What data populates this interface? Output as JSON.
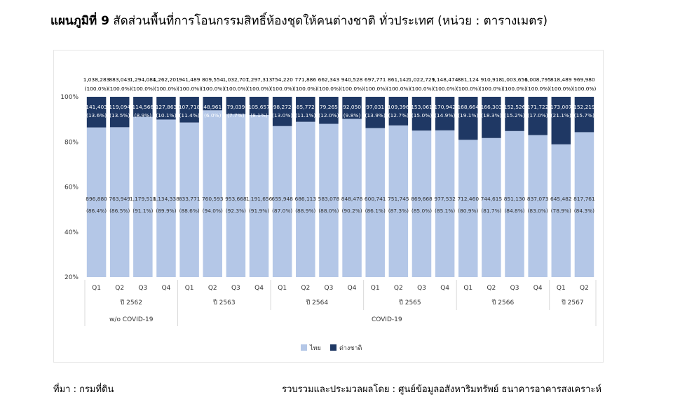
{
  "title": {
    "figure_no": "แผนภูมิที่ 9",
    "text": "สัดส่วนพื้นที่การโอนกรรมสิทธิ์ห้องชุดให้คนต่างชาติ ทั่วประเทศ (หน่วย : ตารางเมตร)"
  },
  "source": {
    "left": "ที่มา : กรมที่ดิน",
    "right": "รวบรวมและประมวลผลโดย : ศูนย์ข้อมูลอสังหาริมทรัพย์ ธนาคารอาคารสงเคราะห์"
  },
  "chart_data": {
    "type": "bar",
    "stacked": "percent",
    "categories": [
      "Q1",
      "Q2",
      "Q3",
      "Q4",
      "Q1",
      "Q2",
      "Q3",
      "Q4",
      "Q1",
      "Q2",
      "Q3",
      "Q4",
      "Q1",
      "Q2",
      "Q3",
      "Q4",
      "Q1",
      "Q2",
      "Q3",
      "Q4",
      "Q1",
      "Q2"
    ],
    "year_groups": [
      {
        "label": "ปี 2562",
        "count": 4
      },
      {
        "label": "ปี 2563",
        "count": 4
      },
      {
        "label": "ปี 2564",
        "count": 4
      },
      {
        "label": "ปี 2565",
        "count": 4
      },
      {
        "label": "ปี 2566",
        "count": 4
      },
      {
        "label": "ปี 2567",
        "count": 2
      }
    ],
    "period_groups": [
      {
        "label": "w/o COVID-19",
        "count": 4
      },
      {
        "label": "COVID-19",
        "count": 18
      }
    ],
    "totals": [
      "1,038,283",
      "883,043",
      "1,294,084",
      "1,262,201",
      "941,489",
      "809,554",
      "1,032,707",
      "1,297,313",
      "754,220",
      "771,886",
      "662,343",
      "940,528",
      "697,771",
      "861,142",
      "1,022,729",
      "1,148,474",
      "881,124",
      "910,918",
      "1,003,656",
      "1,008,795",
      "818,489",
      "969,980"
    ],
    "total_pct": "(100.0%)",
    "series": [
      {
        "name": "ไทย",
        "color": "#b4c7e7",
        "values": [
          "896,880",
          "763,949",
          "1,179,518",
          "1,134,338",
          "833,771",
          "760,593",
          "953,668",
          "1,191,656",
          "655,948",
          "686,113",
          "583,078",
          "848,478",
          "600,741",
          "751,745",
          "869,668",
          "977,532",
          "712,460",
          "744,615",
          "851,130",
          "837,073",
          "645,482",
          "817,761"
        ],
        "pct": [
          86.4,
          86.5,
          91.1,
          89.9,
          88.6,
          94.0,
          92.3,
          91.9,
          87.0,
          88.9,
          88.0,
          90.2,
          86.1,
          87.3,
          85.0,
          85.1,
          80.9,
          81.7,
          84.8,
          83.0,
          78.9,
          84.3
        ],
        "pct_labels": [
          "(86.4%)",
          "(86.5%)",
          "(91.1%)",
          "(89.9%)",
          "(88.6%)",
          "(94.0%)",
          "(92.3%)",
          "(91.9%)",
          "(87.0%)",
          "(88.9%)",
          "(88.0%)",
          "(90.2%)",
          "(86.1%)",
          "(87.3%)",
          "(85.0%)",
          "(85.1%)",
          "(80.9%)",
          "(81.7%)",
          "(84.8%)",
          "(83.0%)",
          "(78.9%)",
          "(84.3%)"
        ]
      },
      {
        "name": "ต่างชาติ",
        "color": "#1f3864",
        "values": [
          "141,403",
          "119,094",
          "114,566",
          "127,863",
          "107,718",
          "48,961",
          "79,039",
          "105,657",
          "98,272",
          "85,772",
          "79,265",
          "92,050",
          "97,031",
          "109,396",
          "153,061",
          "170,942",
          "168,664",
          "166,303",
          "152,526",
          "171,722",
          "173,007",
          "152,219"
        ],
        "pct": [
          13.6,
          13.5,
          8.9,
          10.1,
          11.4,
          6.0,
          7.7,
          8.1,
          13.0,
          11.1,
          12.0,
          9.8,
          13.9,
          12.7,
          15.0,
          14.9,
          19.1,
          18.3,
          15.2,
          17.0,
          21.1,
          15.7
        ],
        "pct_labels": [
          "(13.6%)",
          "(13.5%)",
          "(8.9%)",
          "(10.1%)",
          "(11.4%)",
          "(6.0%)",
          "(7.7%)",
          "(8.1%)",
          "(13.0%)",
          "(11.1%)",
          "(12.0%)",
          "(9.8%)",
          "(13.9%)",
          "(12.7%)",
          "(15.0%)",
          "(14.9%)",
          "(19.1%)",
          "(18.3%)",
          "(15.2%)",
          "(17.0%)",
          "(21.1%)",
          "(15.7%)"
        ]
      }
    ],
    "yticks": [
      20,
      40,
      60,
      80,
      100
    ],
    "ytick_labels": [
      "20%",
      "40%",
      "60%",
      "80%",
      "100%"
    ],
    "ylim": [
      20,
      100
    ],
    "legend_position": "bottom-center",
    "grid": false
  }
}
